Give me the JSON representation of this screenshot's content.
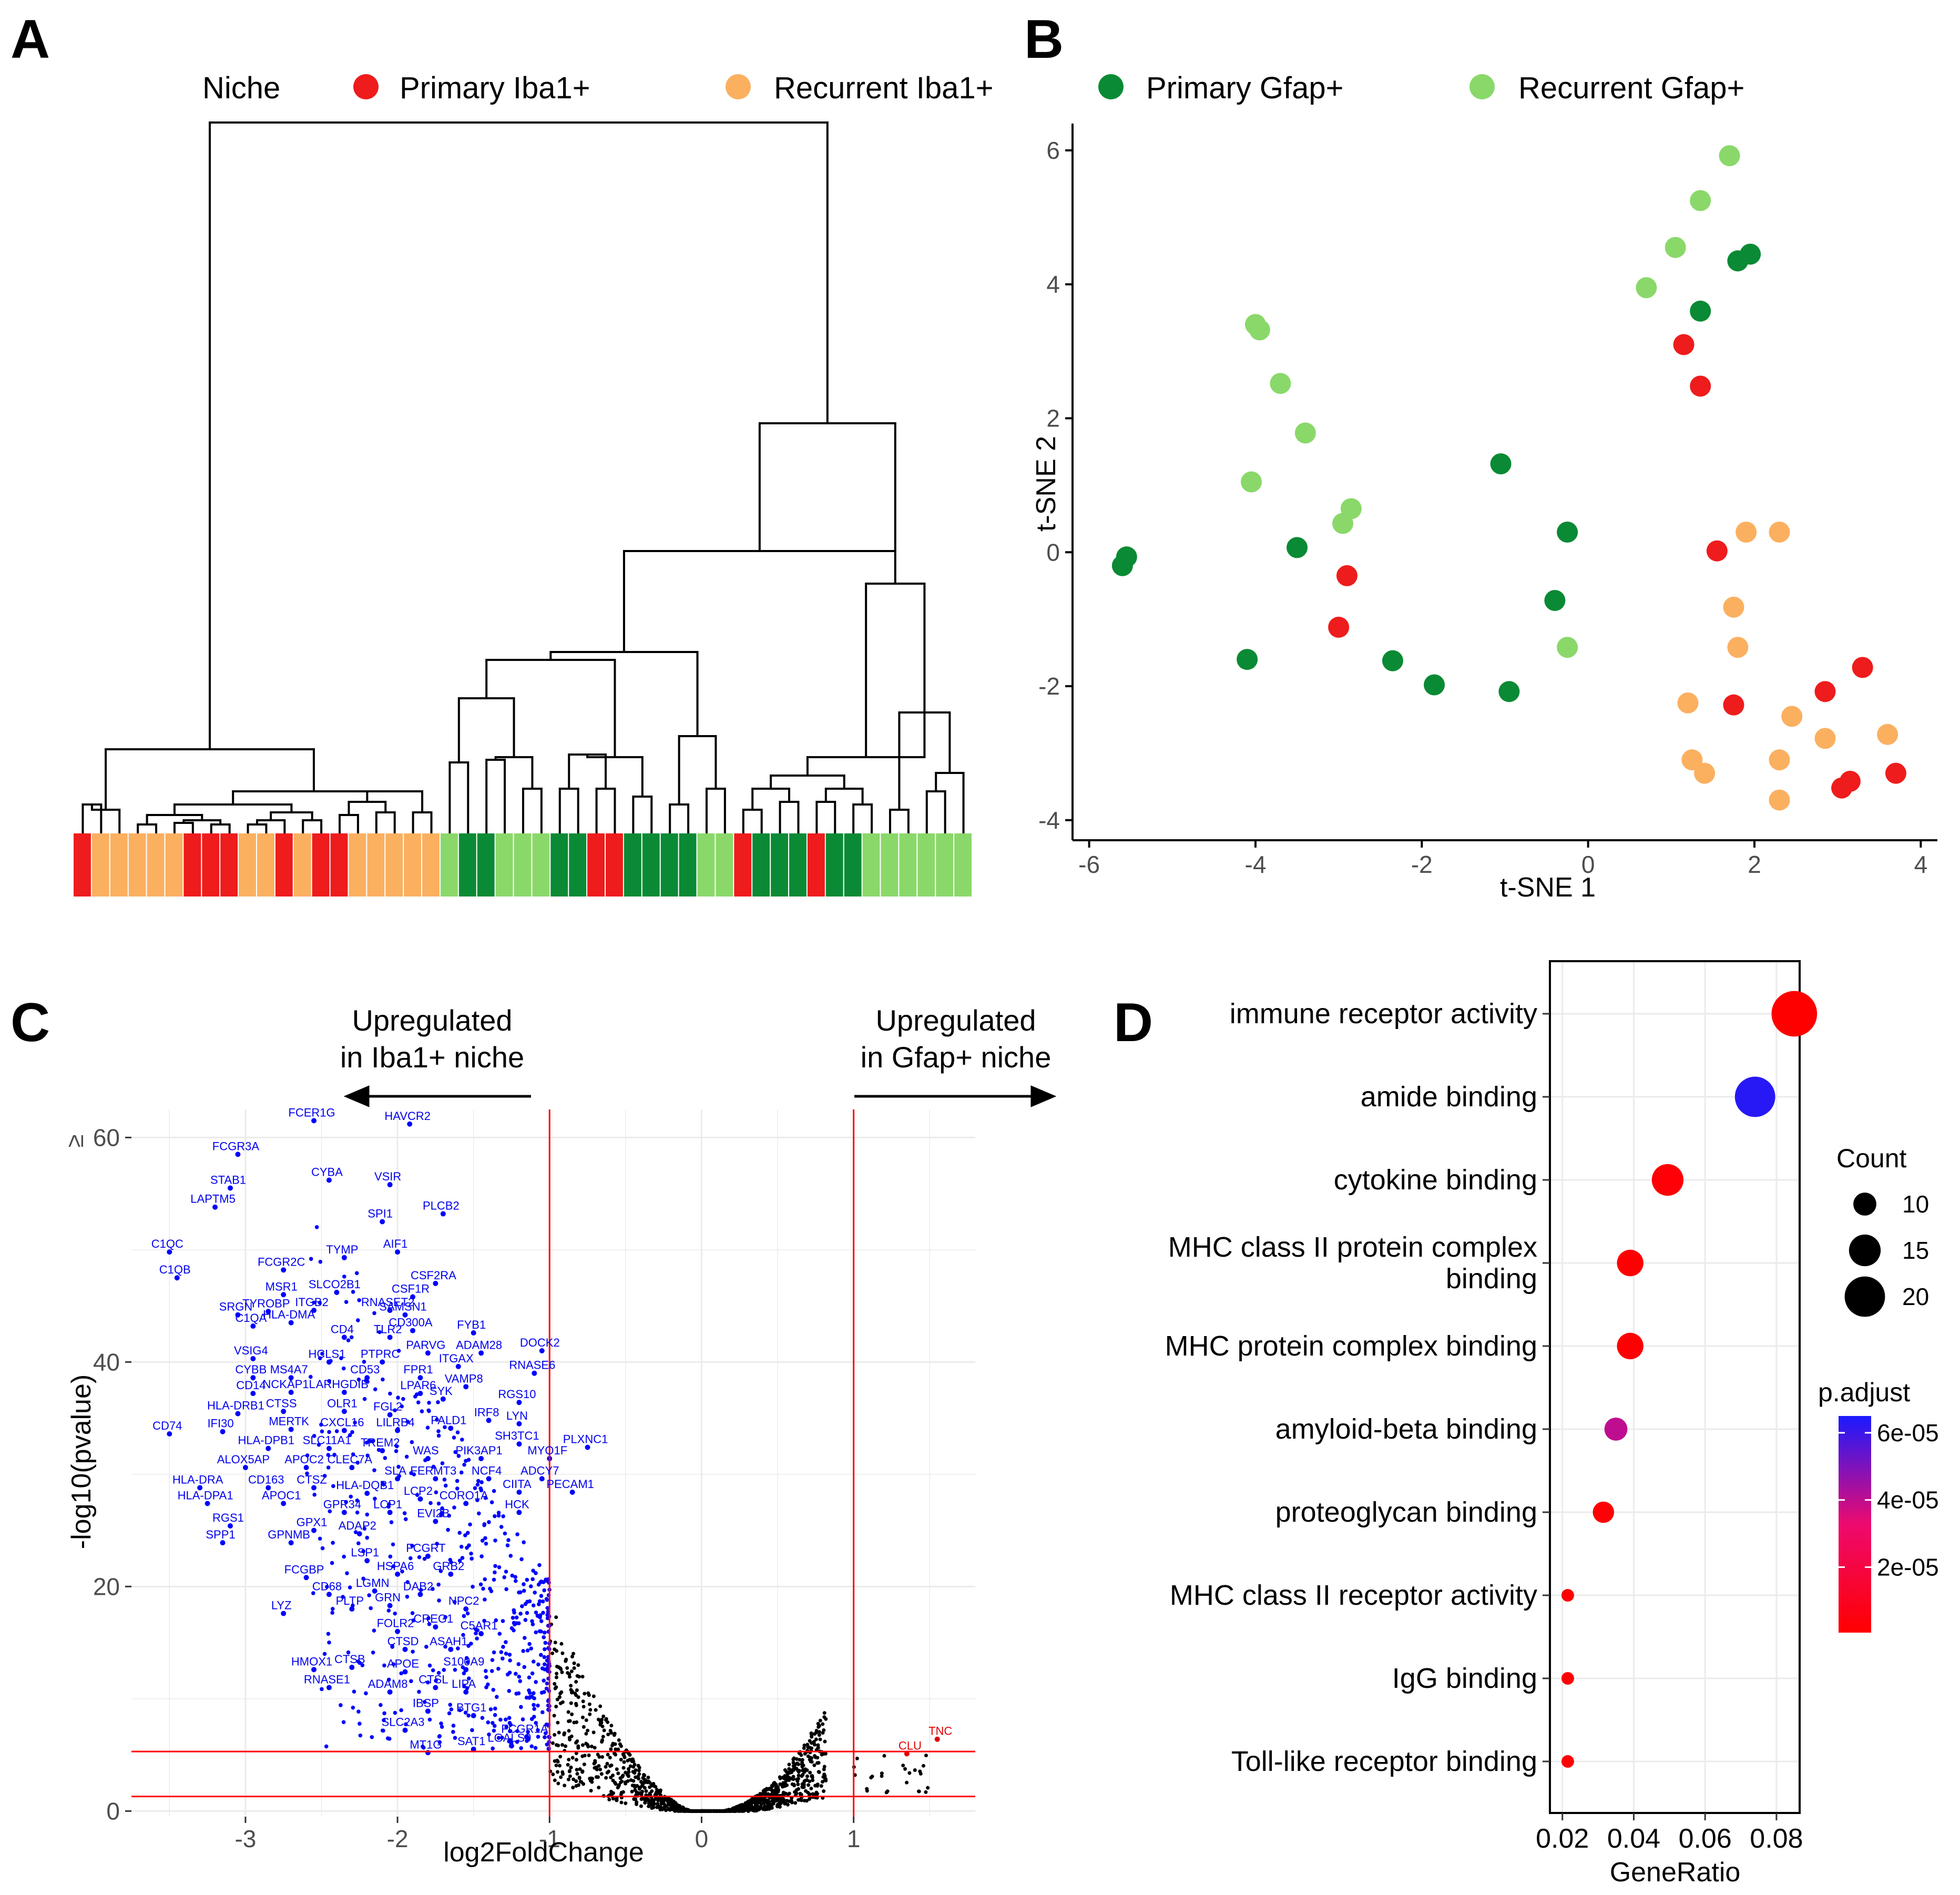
{
  "panels": {
    "A": "A",
    "B": "B",
    "C": "C",
    "D": "D"
  },
  "legend": {
    "title": "Niche",
    "items": [
      {
        "label": "Primary Iba1+",
        "color": "#ee1c1c"
      },
      {
        "label": "Recurrent Iba1+",
        "color": "#fbb060"
      },
      {
        "label": "Primary Gfap+",
        "color": "#0a8a34"
      },
      {
        "label": "Recurrent Gfap+",
        "color": "#8ad86a"
      }
    ]
  },
  "chart_data": [
    {
      "type": "dendrogram",
      "panel": "A",
      "leaf_groups": [
        "P_I",
        "R_I",
        "R_I",
        "R_I",
        "R_I",
        "R_I",
        "P_I",
        "P_I",
        "P_I",
        "R_I",
        "R_I",
        "P_I",
        "R_I",
        "P_I",
        "P_I",
        "R_I",
        "R_I",
        "R_I",
        "R_I",
        "R_I",
        "R_G",
        "P_G",
        "P_G",
        "R_G",
        "R_G",
        "R_G",
        "P_G",
        "P_G",
        "P_I",
        "P_I",
        "P_G",
        "P_G",
        "P_G",
        "P_G",
        "R_G",
        "R_G",
        "P_I",
        "P_G",
        "P_G",
        "P_G",
        "P_I",
        "P_G",
        "P_G",
        "R_G",
        "R_G",
        "R_G",
        "R_G",
        "R_G",
        "R_G"
      ]
    },
    {
      "type": "scatter",
      "panel": "B",
      "xlabel": "t-SNE 1",
      "ylabel": "t-SNE 2",
      "xlim": [
        -6.2,
        4.2
      ],
      "ylim": [
        -4.3,
        6.4
      ],
      "xticks": [
        -6,
        -4,
        -2,
        0,
        2,
        4
      ],
      "yticks": [
        -4,
        -2,
        0,
        2,
        4,
        6
      ],
      "series": [
        {
          "name": "Primary Iba1+",
          "points": [
            [
              1.15,
              3.1
            ],
            [
              1.35,
              2.48
            ],
            [
              -2.9,
              -0.35
            ],
            [
              -3.0,
              -1.12
            ],
            [
              1.55,
              0.02
            ],
            [
              1.75,
              -2.28
            ],
            [
              2.85,
              -2.08
            ],
            [
              3.3,
              -1.72
            ],
            [
              3.05,
              -3.52
            ],
            [
              3.15,
              -3.42
            ],
            [
              3.7,
              -3.3
            ]
          ]
        },
        {
          "name": "Recurrent Iba1+",
          "points": [
            [
              1.9,
              0.3
            ],
            [
              2.3,
              0.3
            ],
            [
              1.75,
              -0.82
            ],
            [
              1.8,
              -1.42
            ],
            [
              1.2,
              -2.25
            ],
            [
              2.45,
              -2.45
            ],
            [
              1.25,
              -3.1
            ],
            [
              1.4,
              -3.3
            ],
            [
              2.3,
              -3.1
            ],
            [
              2.3,
              -3.7
            ],
            [
              2.85,
              -2.78
            ],
            [
              3.6,
              -2.72
            ]
          ]
        },
        {
          "name": "Primary Gfap+",
          "points": [
            [
              1.8,
              4.35
            ],
            [
              1.95,
              4.45
            ],
            [
              1.35,
              3.6
            ],
            [
              -1.05,
              1.32
            ],
            [
              -0.25,
              0.3
            ],
            [
              -3.5,
              0.07
            ],
            [
              -5.55,
              -0.07
            ],
            [
              -5.6,
              -0.2
            ],
            [
              -0.4,
              -0.72
            ],
            [
              -4.1,
              -1.6
            ],
            [
              -2.35,
              -1.62
            ],
            [
              -1.85,
              -1.98
            ],
            [
              -0.95,
              -2.08
            ]
          ]
        },
        {
          "name": "Recurrent Gfap+",
          "points": [
            [
              1.7,
              5.92
            ],
            [
              1.35,
              5.25
            ],
            [
              1.05,
              4.55
            ],
            [
              0.7,
              3.95
            ],
            [
              -4.0,
              3.4
            ],
            [
              -3.95,
              3.32
            ],
            [
              -3.7,
              2.52
            ],
            [
              -3.4,
              1.78
            ],
            [
              -4.05,
              1.05
            ],
            [
              -2.85,
              0.65
            ],
            [
              -2.95,
              0.43
            ],
            [
              -0.25,
              -1.42
            ]
          ]
        }
      ]
    },
    {
      "type": "scatter",
      "panel": "C",
      "title_left": "Upregulated\nin Iba1+ niche",
      "title_left_lines": [
        "Upregulated",
        "in Iba1+ niche"
      ],
      "title_right_lines": [
        "Upregulated",
        "in Gfap+ niche"
      ],
      "xlabel": "log2FoldChange",
      "ylabel": "-log10(pvalue)",
      "ge_mark": "≥",
      "xlim": [
        -3.75,
        1.8
      ],
      "ylim": [
        -0.5,
        62.5
      ],
      "xticks": [
        -3,
        -2,
        -1,
        0,
        1
      ],
      "yticks": [
        0,
        20,
        40,
        60
      ],
      "vlines": [
        -1,
        1
      ],
      "hlines": [
        1.3,
        5.3
      ],
      "labeled_up_iba1": [
        [
          "HAVCR2",
          -1.92,
          61.2
        ],
        [
          "FCER1G",
          -2.55,
          61.5
        ],
        [
          "FCGR3A",
          -3.05,
          58.5
        ],
        [
          "STAB1",
          -3.1,
          55.5
        ],
        [
          "LAPTM5",
          -3.2,
          53.8
        ],
        [
          "CYBA",
          -2.45,
          56.2
        ],
        [
          "VSIR",
          -2.05,
          55.8
        ],
        [
          "SPI1",
          -2.1,
          52.5
        ],
        [
          "PLCB2",
          -1.7,
          53.2
        ],
        [
          "C1QC",
          -3.5,
          49.8
        ],
        [
          "C1QB",
          -3.45,
          47.5
        ],
        [
          "TYMP",
          -2.35,
          49.3
        ],
        [
          "AIF1",
          -2.0,
          49.8
        ],
        [
          "FCGR2C",
          -2.75,
          48.2
        ],
        [
          "CSF2RA",
          -1.75,
          47.0
        ],
        [
          "MSR1",
          -2.75,
          46.0
        ],
        [
          "SLCO2B1",
          -2.4,
          46.2
        ],
        [
          "CSF1R",
          -1.9,
          45.8
        ],
        [
          "SRGN",
          -3.05,
          44.2
        ],
        [
          "TYROBP",
          -2.85,
          44.5
        ],
        [
          "ITGB2",
          -2.55,
          44.6
        ],
        [
          "RNASET2",
          -2.05,
          44.6
        ],
        [
          "SAMSN1",
          -1.95,
          44.2
        ],
        [
          "C1QA",
          -2.95,
          43.2
        ],
        [
          "HLA-DMA",
          -2.7,
          43.5
        ],
        [
          "CD300A",
          -1.9,
          42.8
        ],
        [
          "FYB1",
          -1.5,
          42.6
        ],
        [
          "CD4",
          -2.35,
          42.2
        ],
        [
          "TLR2",
          -2.05,
          42.2
        ],
        [
          "PARVG",
          -1.8,
          40.8
        ],
        [
          "ADAM28",
          -1.45,
          40.8
        ],
        [
          "DOCK2",
          -1.05,
          41.0
        ],
        [
          "VSIG4",
          -2.95,
          40.3
        ],
        [
          "HCLS1",
          -2.45,
          40.0
        ],
        [
          "PTPRC",
          -2.1,
          40.0
        ],
        [
          "ITGAX",
          -1.6,
          39.6
        ],
        [
          "RNASE6",
          -1.1,
          39.0
        ],
        [
          "CYBB",
          -2.95,
          38.6
        ],
        [
          "MS4A7",
          -2.7,
          38.6
        ],
        [
          "CD53",
          -2.2,
          38.6
        ],
        [
          "FPR1",
          -1.85,
          38.6
        ],
        [
          "VAMP8",
          -1.55,
          37.8
        ],
        [
          "CD14",
          -2.95,
          37.2
        ],
        [
          "NCKAP1L",
          -2.7,
          37.3
        ],
        [
          "ARHGDIB",
          -2.35,
          37.3
        ],
        [
          "LPAR6",
          -1.85,
          37.2
        ],
        [
          "SYK",
          -1.7,
          36.7
        ],
        [
          "RGS10",
          -1.2,
          36.4
        ],
        [
          "HLA-DRB1",
          -3.05,
          35.4
        ],
        [
          "CTSS",
          -2.75,
          35.6
        ],
        [
          "OLR1",
          -2.35,
          35.6
        ],
        [
          "FGL2",
          -2.05,
          35.3
        ],
        [
          "IRF8",
          -1.4,
          34.8
        ],
        [
          "LYN",
          -1.2,
          34.5
        ],
        [
          "CD74",
          -3.5,
          33.6
        ],
        [
          "IFI30",
          -3.15,
          33.8
        ],
        [
          "MERTK",
          -2.7,
          34.0
        ],
        [
          "CXCL16",
          -2.35,
          33.9
        ],
        [
          "LILRB4",
          -2.0,
          33.9
        ],
        [
          "PALD1",
          -1.65,
          34.1
        ],
        [
          "SH3TC1",
          -1.2,
          32.7
        ],
        [
          "PLXNC1",
          -0.75,
          32.4
        ],
        [
          "HLA-DPB1",
          -2.85,
          32.3
        ],
        [
          "SLC11A1",
          -2.45,
          32.3
        ],
        [
          "TREM2",
          -2.1,
          32.1
        ],
        [
          "WAS",
          -1.8,
          31.4
        ],
        [
          "PIK3AP1",
          -1.45,
          31.4
        ],
        [
          "MYO1F",
          -1.0,
          31.4
        ],
        [
          "ALOX5AP",
          -3.0,
          30.6
        ],
        [
          "APOC2",
          -2.6,
          30.6
        ],
        [
          "CLEC7A",
          -2.3,
          30.6
        ],
        [
          "SLA",
          -2.0,
          29.6
        ],
        [
          "FERMT3",
          -1.75,
          29.6
        ],
        [
          "NCF4",
          -1.4,
          29.6
        ],
        [
          "ADCY7",
          -1.05,
          29.6
        ],
        [
          "HLA-DRA",
          -3.3,
          28.8
        ],
        [
          "CD163",
          -2.85,
          28.8
        ],
        [
          "CTSZ",
          -2.55,
          28.8
        ],
        [
          "HLA-DQB1",
          -2.2,
          28.3
        ],
        [
          "LCP2",
          -1.85,
          27.8
        ],
        [
          "CORO1A",
          -1.55,
          27.4
        ],
        [
          "CIITA",
          -1.2,
          28.4
        ],
        [
          "PECAM1",
          -0.85,
          28.4
        ],
        [
          "HLA-DPA1",
          -3.25,
          27.4
        ],
        [
          "APOC1",
          -2.75,
          27.4
        ],
        [
          "GPR34",
          -2.35,
          26.6
        ],
        [
          "LCP1",
          -2.05,
          26.6
        ],
        [
          "HCK",
          -1.2,
          26.6
        ],
        [
          "EVI2B",
          -1.75,
          25.8
        ],
        [
          "RGS1",
          -3.1,
          25.4
        ],
        [
          "GPX1",
          -2.55,
          25.0
        ],
        [
          "ADAP2",
          -2.25,
          24.7
        ],
        [
          "SPP1",
          -3.15,
          23.9
        ],
        [
          "GPNMB",
          -2.7,
          23.9
        ],
        [
          "LSP1",
          -2.2,
          22.3
        ],
        [
          "FCGRT",
          -1.8,
          22.7
        ],
        [
          "FCGBP",
          -2.6,
          20.8
        ],
        [
          "HSPA6",
          -2.0,
          21.1
        ],
        [
          "GRB2",
          -1.65,
          21.1
        ],
        [
          "LGMN",
          -2.15,
          19.6
        ],
        [
          "CD68",
          -2.45,
          19.3
        ],
        [
          "DAB2",
          -1.85,
          19.3
        ],
        [
          "LYZ",
          -2.75,
          17.6
        ],
        [
          "PLTP",
          -2.3,
          18.0
        ],
        [
          "GRN",
          -2.05,
          18.3
        ],
        [
          "NPC2",
          -1.55,
          18.0
        ],
        [
          "FOLR2",
          -2.0,
          16.0
        ],
        [
          "CREG1",
          -1.75,
          16.4
        ],
        [
          "C5AR1",
          -1.45,
          15.8
        ],
        [
          "CTSD",
          -1.95,
          14.4
        ],
        [
          "ASAH1",
          -1.65,
          14.4
        ],
        [
          "HMOX1",
          -2.55,
          12.6
        ],
        [
          "CTSB",
          -2.3,
          12.8
        ],
        [
          "APOE",
          -1.95,
          12.4
        ],
        [
          "S100A9",
          -1.55,
          12.6
        ],
        [
          "RNASE1",
          -2.45,
          11.0
        ],
        [
          "ADAM8",
          -2.05,
          10.6
        ],
        [
          "CTSL",
          -1.75,
          11.0
        ],
        [
          "LIPA",
          -1.55,
          10.6
        ],
        [
          "IBSP",
          -1.8,
          8.9
        ],
        [
          "BTG1",
          -1.5,
          8.5
        ],
        [
          "SLC2A3",
          -1.95,
          7.2
        ],
        [
          "SAT1",
          -1.5,
          5.5
        ],
        [
          "MT1G",
          -1.8,
          5.2
        ],
        [
          "FCGR1A",
          -1.15,
          6.6
        ],
        [
          "LGALS9",
          -1.25,
          5.8
        ]
      ],
      "labeled_up_gfap": [
        [
          "TNC",
          1.55,
          6.4
        ],
        [
          "CLU",
          1.35,
          5.1
        ]
      ]
    },
    {
      "type": "dotplot",
      "panel": "D",
      "xlabel": "GeneRatio",
      "xlim": [
        0.0165,
        0.0865
      ],
      "xticks": [
        0.02,
        0.04,
        0.06,
        0.08
      ],
      "xtick_labels": [
        "0.02",
        "0.04",
        "0.06",
        "0.08"
      ],
      "size_legend_title": "Count",
      "size_legend": [
        10,
        15,
        20
      ],
      "color_legend_title": "p.adjust",
      "color_legend_ticks": [
        "6e-05",
        "4e-05",
        "2e-05"
      ],
      "color_range": [
        5e-07,
        6.5e-05
      ],
      "terms": [
        {
          "label": "immune receptor activity",
          "lines": [
            "immune receptor activity"
          ],
          "gene_ratio": 0.085,
          "count": 23,
          "p_adjust": 5e-07
        },
        {
          "label": "amide binding",
          "lines": [
            "amide binding"
          ],
          "gene_ratio": 0.074,
          "count": 20,
          "p_adjust": 6.3e-05
        },
        {
          "label": "cytokine binding",
          "lines": [
            "cytokine binding"
          ],
          "gene_ratio": 0.0495,
          "count": 15,
          "p_adjust": 2e-06
        },
        {
          "label": "MHC class II protein complex binding",
          "lines": [
            "MHC class II protein complex",
            "binding"
          ],
          "gene_ratio": 0.039,
          "count": 12,
          "p_adjust": 1e-06
        },
        {
          "label": "MHC protein complex binding",
          "lines": [
            "MHC protein complex binding"
          ],
          "gene_ratio": 0.039,
          "count": 12,
          "p_adjust": 1e-06
        },
        {
          "label": "amyloid-beta binding",
          "lines": [
            "amyloid-beta binding"
          ],
          "gene_ratio": 0.035,
          "count": 10,
          "p_adjust": 4e-05
        },
        {
          "label": "proteoglycan binding",
          "lines": [
            "proteoglycan binding"
          ],
          "gene_ratio": 0.0315,
          "count": 9,
          "p_adjust": 2e-06
        },
        {
          "label": "MHC class II receptor activity",
          "lines": [
            "MHC class II receptor activity"
          ],
          "gene_ratio": 0.0215,
          "count": 4,
          "p_adjust": 1e-06
        },
        {
          "label": "IgG binding",
          "lines": [
            "IgG binding"
          ],
          "gene_ratio": 0.0215,
          "count": 4,
          "p_adjust": 1e-06
        },
        {
          "label": "Toll-like receptor binding",
          "lines": [
            "Toll-like receptor binding"
          ],
          "gene_ratio": 0.0215,
          "count": 4,
          "p_adjust": 1e-06
        }
      ]
    }
  ]
}
